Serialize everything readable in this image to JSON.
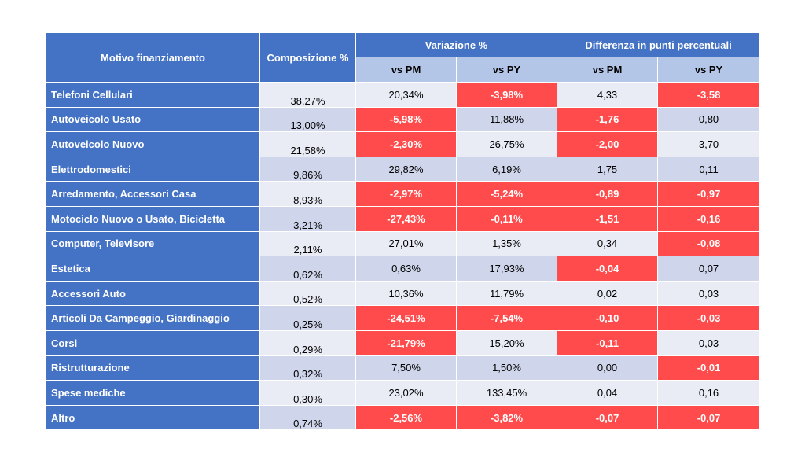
{
  "header": {
    "motivo": "Motivo finanziamento",
    "composizione": "Composizione %",
    "variazione": "Variazione %",
    "differenza": "Differenza in punti percentuali",
    "sub": [
      "vs PM",
      "vs PY",
      "vs PM",
      "vs PY"
    ]
  },
  "colors": {
    "header": "#4472c4",
    "subheader": "#b4c6e7",
    "negative": "#ff4b4b",
    "row_light": "#e9ebf5",
    "row_dark": "#cfd5ea"
  },
  "rows": [
    {
      "label": "Telefoni Cellulari",
      "comp": "38,27%",
      "vpm": "20,34%",
      "vpy": "-3,98%",
      "dpm": "4,33",
      "dpy": "-3,58"
    },
    {
      "label": "Autoveicolo Usato",
      "comp": "13,00%",
      "vpm": "-5,98%",
      "vpy": "11,88%",
      "dpm": "-1,76",
      "dpy": "0,80"
    },
    {
      "label": "Autoveicolo Nuovo",
      "comp": "21,58%",
      "vpm": "-2,30%",
      "vpy": "26,75%",
      "dpm": "-2,00",
      "dpy": "3,70"
    },
    {
      "label": "Elettrodomestici",
      "comp": "9,86%",
      "vpm": "29,82%",
      "vpy": "6,19%",
      "dpm": "1,75",
      "dpy": "0,11"
    },
    {
      "label": "Arredamento, Accessori Casa",
      "comp": "8,93%",
      "vpm": "-2,97%",
      "vpy": "-5,24%",
      "dpm": "-0,89",
      "dpy": "-0,97"
    },
    {
      "label": "Motociclo Nuovo o Usato, Bicicletta",
      "comp": "3,21%",
      "vpm": "-27,43%",
      "vpy": "-0,11%",
      "dpm": "-1,51",
      "dpy": "-0,16"
    },
    {
      "label": "Computer, Televisore",
      "comp": "2,11%",
      "vpm": "27,01%",
      "vpy": "1,35%",
      "dpm": "0,34",
      "dpy": "-0,08"
    },
    {
      "label": "Estetica",
      "comp": "0,62%",
      "vpm": "0,63%",
      "vpy": "17,93%",
      "dpm": "-0,04",
      "dpy": "0,07"
    },
    {
      "label": "Accessori Auto",
      "comp": "0,52%",
      "vpm": "10,36%",
      "vpy": "11,79%",
      "dpm": "0,02",
      "dpy": "0,03"
    },
    {
      "label": "Articoli Da Campeggio, Giardinaggio",
      "comp": "0,25%",
      "vpm": "-24,51%",
      "vpy": "-7,54%",
      "dpm": "-0,10",
      "dpy": "-0,03"
    },
    {
      "label": "Corsi",
      "comp": "0,29%",
      "vpm": "-21,79%",
      "vpy": "15,20%",
      "dpm": "-0,11",
      "dpy": "0,03"
    },
    {
      "label": "Ristrutturazione",
      "comp": "0,32%",
      "vpm": "7,50%",
      "vpy": "1,50%",
      "dpm": "0,00",
      "dpy": "-0,01"
    },
    {
      "label": "Spese mediche",
      "comp": "0,30%",
      "vpm": "23,02%",
      "vpy": "133,45%",
      "dpm": "0,04",
      "dpy": "0,16"
    },
    {
      "label": "Altro",
      "comp": "0,74%",
      "vpm": "-2,56%",
      "vpy": "-3,82%",
      "dpm": "-0,07",
      "dpy": "-0,07"
    }
  ]
}
